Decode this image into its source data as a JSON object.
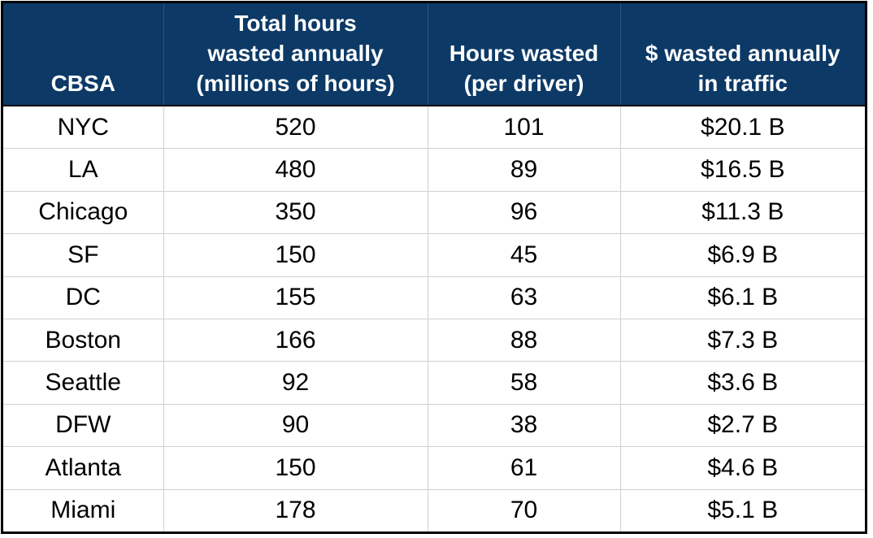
{
  "table": {
    "header": [
      [
        "CBSA"
      ],
      [
        "Total hours",
        "wasted annually",
        "(millions of hours)"
      ],
      [
        "Hours wasted",
        "(per driver)"
      ],
      [
        "$ wasted annually",
        "in traffic"
      ]
    ],
    "rows": [
      [
        "NYC",
        "520",
        "101",
        "$20.1 B"
      ],
      [
        "LA",
        "480",
        "89",
        "$16.5 B"
      ],
      [
        "Chicago",
        "350",
        "96",
        "$11.3 B"
      ],
      [
        "SF",
        "150",
        "45",
        "$6.9 B"
      ],
      [
        "DC",
        "155",
        "63",
        "$6.1 B"
      ],
      [
        "Boston",
        "166",
        "88",
        "$7.3 B"
      ],
      [
        "Seattle",
        "92",
        "58",
        "$3.6 B"
      ],
      [
        "DFW",
        "90",
        "38",
        "$2.7 B"
      ],
      [
        "Atlanta",
        "150",
        "61",
        "$4.6 B"
      ],
      [
        "Miami",
        "178",
        "70",
        "$5.1 B"
      ]
    ]
  }
}
